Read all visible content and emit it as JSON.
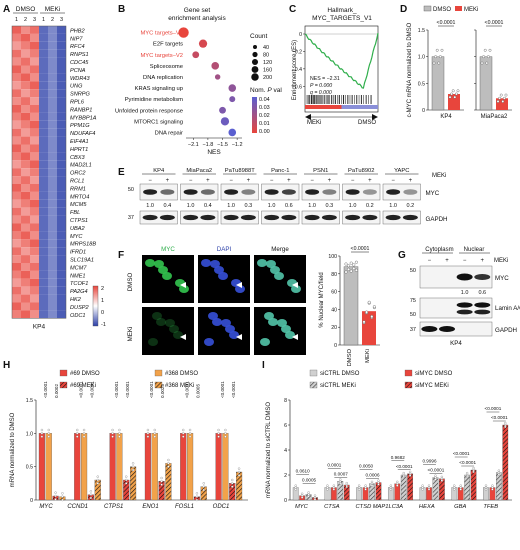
{
  "panels": {
    "A": {
      "letter": "A",
      "group_dmso": "DMSO",
      "group_meki": "MEKi",
      "replicates": [
        "1",
        "2",
        "3",
        "1",
        "2",
        "3"
      ],
      "genes": [
        "PHB2",
        "NIP7",
        "RFC4",
        "RNPS1",
        "CDC45",
        "PCNA",
        "WDR43",
        "UNG",
        "SNRPG",
        "RPL6",
        "RANBP1",
        "MYBBP1A",
        "PPM1G",
        "NDUFAF4",
        "EIF4A1",
        "HPRT1",
        "CBX3",
        "MAD2L1",
        "ORC2",
        "RCL1",
        "RRM1",
        "MRTO4",
        "MCM5",
        "FBL",
        "CTPS1",
        "UBA2",
        "MYC",
        "MRPS18B",
        "IFRD1",
        "SLC19A1",
        "MCM7",
        "NME1",
        "TCOF1",
        "PA2G4",
        "HK2",
        "DUSP2",
        "ODC1"
      ],
      "cell_line": "KP4",
      "colorbar_ticks": [
        "2",
        "1",
        "0",
        "-1"
      ]
    },
    "B": {
      "letter": "B",
      "title_line1": "Gene set",
      "title_line2": "enrichment analysis",
      "pathways": [
        {
          "name": "MYC targets–V1",
          "nes": -2.3,
          "count": 180,
          "pval": 0.0,
          "highlight": true
        },
        {
          "name": "E2F targets",
          "nes": -1.9,
          "count": 100,
          "pval": 0.005,
          "highlight": false
        },
        {
          "name": "MYC targets–V2",
          "nes": -2.05,
          "count": 60,
          "pval": 0.01,
          "highlight": true
        },
        {
          "name": "Spliceosome",
          "nes": -1.65,
          "count": 80,
          "pval": 0.015,
          "highlight": false
        },
        {
          "name": "DNA replication",
          "nes": -1.6,
          "count": 30,
          "pval": 0.02,
          "highlight": false
        },
        {
          "name": "KRAS signaling up",
          "nes": -1.3,
          "count": 80,
          "pval": 0.025,
          "highlight": false
        },
        {
          "name": "Pyrimidine metabolism",
          "nes": -1.3,
          "count": 40,
          "pval": 0.03,
          "highlight": false
        },
        {
          "name": "Unfolded protein response",
          "nes": -1.5,
          "count": 60,
          "pval": 0.03,
          "highlight": false
        },
        {
          "name": "MTORC1 signaling",
          "nes": -1.45,
          "count": 100,
          "pval": 0.035,
          "highlight": false
        },
        {
          "name": "DNA repair",
          "nes": -1.3,
          "count": 80,
          "pval": 0.04,
          "highlight": false
        }
      ],
      "x_ticks": [
        "−2.1",
        "−1.8",
        "−1.5",
        "−1.2"
      ],
      "x_label": "NES",
      "count_title": "Count",
      "count_values": [
        "40",
        "80",
        "120",
        "160",
        "200"
      ],
      "pval_title_line1": "Nom. ",
      "pval_title_italic": "P",
      "pval_title_line2": " val",
      "pval_ticks": [
        "0.04",
        "0.03",
        "0.02",
        "0.01",
        "0.00"
      ]
    },
    "C": {
      "letter": "C",
      "title_line1": "Hallmark_",
      "title_line2": "MYC_TARGETS_V1",
      "y_label": "Enrichment score (ES)",
      "y_ticks": [
        "0",
        "−0.2",
        "−0.4",
        "−0.6"
      ],
      "nes": "NES = −2.31",
      "p_label": "P = 0.000",
      "q_label": "q = 0.000",
      "left": "MEKi",
      "right": "DMSO"
    },
    "D": {
      "letter": "D",
      "legend": [
        "DMSO",
        "MEKi"
      ],
      "y_label": "c-MYC mRNA normalized to DMSO",
      "y_ticks": [
        "1.5",
        "1.0",
        "0.5",
        "0"
      ],
      "groups": [
        {
          "cell": "KP4",
          "dmso": 1.0,
          "meki": 0.3,
          "p": "<0.0001"
        },
        {
          "cell": "MiaPaca2",
          "dmso": 1.0,
          "meki": 0.22,
          "p": "<0.0001"
        }
      ]
    },
    "E": {
      "letter": "E",
      "meki_label": "MEKi",
      "lines": [
        {
          "name": "KP4",
          "ratio": [
            "1.0",
            "0.4"
          ]
        },
        {
          "name": "MiaPaca2",
          "ratio": [
            "1.0",
            "0.4"
          ]
        },
        {
          "name": "PaTu8988T",
          "ratio": [
            "1.0",
            "0.3"
          ]
        },
        {
          "name": "Panc-1",
          "ratio": [
            "1.0",
            "0.6"
          ]
        },
        {
          "name": "PSN1",
          "ratio": [
            "1.0",
            "0.3"
          ]
        },
        {
          "name": "PaTu8902",
          "ratio": [
            "1.0",
            "0.2"
          ]
        },
        {
          "name": "YAPC",
          "ratio": [
            "1.0",
            "0.2"
          ]
        }
      ],
      "minus": "−",
      "plus": "+",
      "mw_top": "50",
      "mw_bottom": "37",
      "band_top": "MYC",
      "band_bottom": "GAPDH"
    },
    "F": {
      "letter": "F",
      "cols": [
        "MYC",
        "DAPI",
        "Merge"
      ],
      "rows": [
        "DMSO",
        "MEKi"
      ],
      "y_label": "% Nuclear MYC/field",
      "y_ticks": [
        "100",
        "80",
        "60",
        "40",
        "20",
        "0"
      ],
      "x_labels": [
        "DMSO",
        "MEKi"
      ],
      "p": "<0.0001",
      "dmso_mean": 88,
      "meki_mean": 38
    },
    "G": {
      "letter": "G",
      "fractions": [
        "Cytoplasm",
        "Nuclear"
      ],
      "meki_label": "MEKi",
      "signs": [
        "−",
        "+",
        "−",
        "+"
      ],
      "ratio": [
        "1.0",
        "0.6"
      ],
      "mw": [
        "50",
        "75",
        "50",
        "37"
      ],
      "bands": [
        "MYC",
        "Lamin A/C",
        "GAPDH"
      ],
      "cell_line": "KP4"
    },
    "H": {
      "letter": "H",
      "legend": [
        "#69 DMSO",
        "#368 DMSO",
        "#69 MEKi",
        "#368 MEKi"
      ],
      "y_label": "mRNA normalized to DMSO",
      "y_ticks": [
        "1.5",
        "1.0",
        "0.5",
        "0"
      ],
      "genes": [
        "MYC",
        "CCND1",
        "CTPS1",
        "ENO1",
        "FOSL1",
        "ODC1"
      ],
      "pvalues": [
        [
          "<0.0001",
          "0.0002"
        ],
        [
          "<0.0001",
          "<0.0001"
        ],
        [
          "<0.0001",
          "<0.0001"
        ],
        [
          "<0.0001",
          "0.0025"
        ],
        [
          "<0.0001",
          "0.0005"
        ],
        [
          "<0.0001",
          "<0.0001"
        ]
      ]
    },
    "I": {
      "letter": "I",
      "legend": [
        "siCTRL DMSO",
        "siMYC DMSO",
        "siCTRL MEKi",
        "siMYC MEKi"
      ],
      "y_label": "mRNA normalized to siCTRL DMSO",
      "y_ticks": [
        "8",
        "6",
        "4",
        "2",
        "0"
      ],
      "genes": [
        "MYC",
        "CTSA",
        "CTSD",
        "MAP1LC3A",
        "HEXA",
        "GBA",
        "TFEB"
      ],
      "pvalues": [
        [
          "0.0610",
          "0.0005"
        ],
        [
          "0.0001",
          "0.0007"
        ],
        [
          "0.0050",
          "0.0006"
        ],
        [
          "0.9682",
          "<0.0001"
        ],
        [
          "0.9996",
          "<0.0001"
        ],
        [
          "<0.0001",
          "<0.0001"
        ],
        [
          "<0.0001",
          "<0.0001"
        ]
      ]
    }
  },
  "chart_data": [
    {
      "type": "bar",
      "panel": "D",
      "categories": [
        "KP4",
        "MiaPaca2"
      ],
      "series": [
        {
          "name": "DMSO",
          "values": [
            1.0,
            1.0
          ]
        },
        {
          "name": "MEKi",
          "values": [
            0.3,
            0.22
          ]
        }
      ],
      "ylabel": "c-MYC mRNA normalized to DMSO",
      "ylim": [
        0,
        1.5
      ]
    },
    {
      "type": "bar",
      "panel": "H",
      "categories": [
        "MYC",
        "CCND1",
        "CTPS1",
        "ENO1",
        "FOSL1",
        "ODC1"
      ],
      "series": [
        {
          "name": "#69 DMSO",
          "values": [
            1,
            1,
            1,
            1,
            1,
            1
          ]
        },
        {
          "name": "#368 DMSO",
          "values": [
            1,
            1,
            1,
            1,
            1,
            1
          ]
        },
        {
          "name": "#69 MEKi",
          "values": [
            0.06,
            0.08,
            0.3,
            0.28,
            0.05,
            0.25
          ]
        },
        {
          "name": "#368 MEKi",
          "values": [
            0.05,
            0.3,
            0.5,
            0.55,
            0.2,
            0.42
          ]
        }
      ],
      "ylabel": "mRNA normalized to DMSO",
      "ylim": [
        0,
        1.5
      ]
    },
    {
      "type": "bar",
      "panel": "I",
      "categories": [
        "MYC",
        "CTSA",
        "CTSD",
        "MAP1LC3A",
        "HEXA",
        "GBA",
        "TFEB"
      ],
      "series": [
        {
          "name": "siCTRL DMSO",
          "values": [
            1,
            1,
            1,
            1,
            1,
            1,
            1
          ]
        },
        {
          "name": "siMYC DMSO",
          "values": [
            0.35,
            1.0,
            1.0,
            1.3,
            1.0,
            1.0,
            1.0
          ]
        },
        {
          "name": "siCTRL MEKi",
          "values": [
            0.45,
            1.5,
            1.3,
            2.0,
            1.8,
            2.0,
            2.2
          ]
        },
        {
          "name": "siMYC MEKi",
          "values": [
            0.2,
            1.2,
            1.4,
            2.1,
            1.7,
            2.4,
            6.0
          ]
        }
      ],
      "ylabel": "mRNA normalized to siCTRL DMSO",
      "ylim": [
        0,
        8
      ]
    }
  ]
}
